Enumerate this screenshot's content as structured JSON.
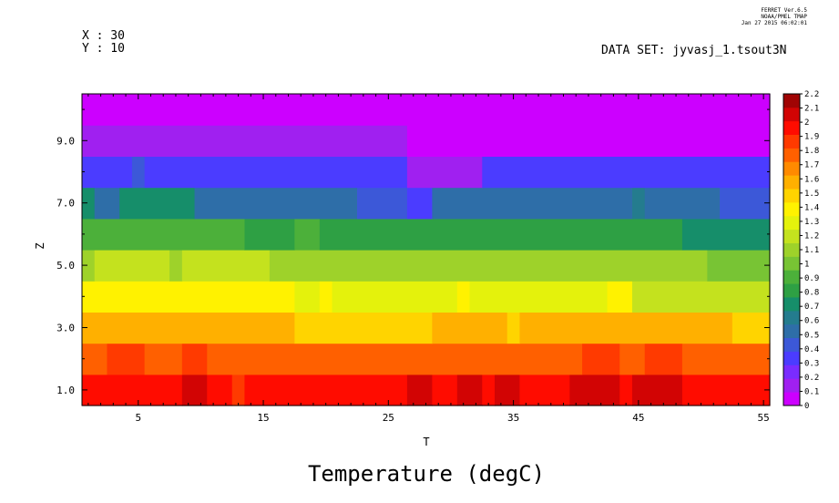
{
  "header": {
    "stamp_line1": "FERRET Ver.6.5",
    "stamp_line2": "NOAA/PMEL TMAP",
    "stamp_line3": "Jan 27 2015 06:02:01",
    "x_info": "X : 30",
    "y_info": "Y : 10",
    "dataset": "DATA SET: jyvasj_1.tsout3N"
  },
  "chart_data": {
    "type": "heatmap",
    "title": "Temperature (degC)",
    "xlabel": "T",
    "ylabel": "Z",
    "xlim": [
      0.5,
      55.5
    ],
    "ylim": [
      0.5,
      10.5
    ],
    "x_ticks": [
      5,
      15,
      25,
      35,
      45,
      55
    ],
    "y_ticks": [
      1.0,
      3.0,
      5.0,
      7.0,
      9.0
    ],
    "y_tick_labels": [
      "1.0",
      "3.0",
      "5.0",
      "7.0",
      "9.0"
    ],
    "colorbar": {
      "levels": [
        0,
        0.1,
        0.2,
        0.3,
        0.4,
        0.5,
        0.6,
        0.7,
        0.8,
        0.9,
        1,
        1.1,
        1.2,
        1.3,
        1.4,
        1.5,
        1.6,
        1.7,
        1.8,
        1.9,
        2,
        2.1,
        2.2
      ],
      "labels": [
        "0",
        "0.1",
        "0.2",
        "0.3",
        "0.4",
        "0.5",
        "0.6",
        "0.7",
        "0.8",
        "0.9",
        "1",
        "1.1",
        "1.2",
        "1.3",
        "1.4",
        "1.5",
        "1.6",
        "1.7",
        "1.8",
        "1.9",
        "2",
        "2.1",
        "2.2"
      ],
      "colors": [
        "#cc00ff",
        "#a020f0",
        "#7a2cff",
        "#4b3cff",
        "#3c58d8",
        "#2e6ea8",
        "#247c8e",
        "#168e6a",
        "#2ea044",
        "#4cb03a",
        "#78c434",
        "#9ed22a",
        "#c4e21e",
        "#e4f20c",
        "#fff200",
        "#ffd400",
        "#ffb000",
        "#ff8a00",
        "#ff6000",
        "#ff3a00",
        "#ff0c00",
        "#d20404",
        "#a00404"
      ]
    },
    "rows": [
      {
        "z": 1,
        "segments": [
          [
            1,
            8,
            2.05
          ],
          [
            9,
            10,
            2.15
          ],
          [
            11,
            12,
            2.05
          ],
          [
            13,
            13,
            1.95
          ],
          [
            14,
            26,
            2.05
          ],
          [
            27,
            28,
            2.15
          ],
          [
            29,
            30,
            2.05
          ],
          [
            31,
            32,
            2.15
          ],
          [
            33,
            33,
            2.05
          ],
          [
            34,
            35,
            2.15
          ],
          [
            36,
            39,
            2.05
          ],
          [
            40,
            43,
            2.15
          ],
          [
            44,
            44,
            2.05
          ],
          [
            45,
            48,
            2.15
          ],
          [
            49,
            55,
            2.05
          ]
        ]
      },
      {
        "z": 2,
        "segments": [
          [
            1,
            2,
            1.85
          ],
          [
            3,
            5,
            1.95
          ],
          [
            6,
            8,
            1.85
          ],
          [
            9,
            10,
            1.95
          ],
          [
            11,
            40,
            1.85
          ],
          [
            41,
            43,
            1.95
          ],
          [
            44,
            45,
            1.85
          ],
          [
            46,
            48,
            1.95
          ],
          [
            49,
            55,
            1.85
          ]
        ]
      },
      {
        "z": 3,
        "segments": [
          [
            1,
            17,
            1.65
          ],
          [
            18,
            28,
            1.55
          ],
          [
            29,
            34,
            1.65
          ],
          [
            35,
            35,
            1.55
          ],
          [
            36,
            52,
            1.65
          ],
          [
            53,
            55,
            1.55
          ]
        ]
      },
      {
        "z": 4,
        "segments": [
          [
            1,
            17,
            1.45
          ],
          [
            18,
            19,
            1.35
          ],
          [
            20,
            20,
            1.45
          ],
          [
            21,
            30,
            1.35
          ],
          [
            31,
            31,
            1.45
          ],
          [
            32,
            42,
            1.35
          ],
          [
            43,
            44,
            1.45
          ],
          [
            45,
            55,
            1.25
          ]
        ]
      },
      {
        "z": 5,
        "segments": [
          [
            1,
            1,
            1.15
          ],
          [
            2,
            7,
            1.25
          ],
          [
            8,
            8,
            1.15
          ],
          [
            9,
            15,
            1.25
          ],
          [
            16,
            50,
            1.15
          ],
          [
            51,
            55,
            1.05
          ]
        ]
      },
      {
        "z": 6,
        "segments": [
          [
            1,
            13,
            0.95
          ],
          [
            14,
            17,
            0.85
          ],
          [
            18,
            19,
            0.95
          ],
          [
            20,
            48,
            0.85
          ],
          [
            49,
            55,
            0.75
          ]
        ]
      },
      {
        "z": 7,
        "segments": [
          [
            1,
            1,
            0.75
          ],
          [
            2,
            3,
            0.55
          ],
          [
            4,
            9,
            0.75
          ],
          [
            10,
            22,
            0.55
          ],
          [
            23,
            26,
            0.45
          ],
          [
            27,
            28,
            0.35
          ],
          [
            29,
            33,
            0.55
          ],
          [
            34,
            44,
            0.55
          ],
          [
            45,
            45,
            0.65
          ],
          [
            46,
            51,
            0.55
          ],
          [
            52,
            55,
            0.45
          ]
        ]
      },
      {
        "z": 8,
        "segments": [
          [
            1,
            4,
            0.35
          ],
          [
            5,
            5,
            0.45
          ],
          [
            6,
            26,
            0.35
          ],
          [
            27,
            32,
            0.15
          ],
          [
            33,
            55,
            0.35
          ]
        ]
      },
      {
        "z": 9,
        "segments": [
          [
            1,
            26,
            0.15
          ],
          [
            27,
            55,
            0.05
          ]
        ]
      },
      {
        "z": 10,
        "segments": [
          [
            1,
            55,
            0.05
          ]
        ]
      }
    ]
  }
}
